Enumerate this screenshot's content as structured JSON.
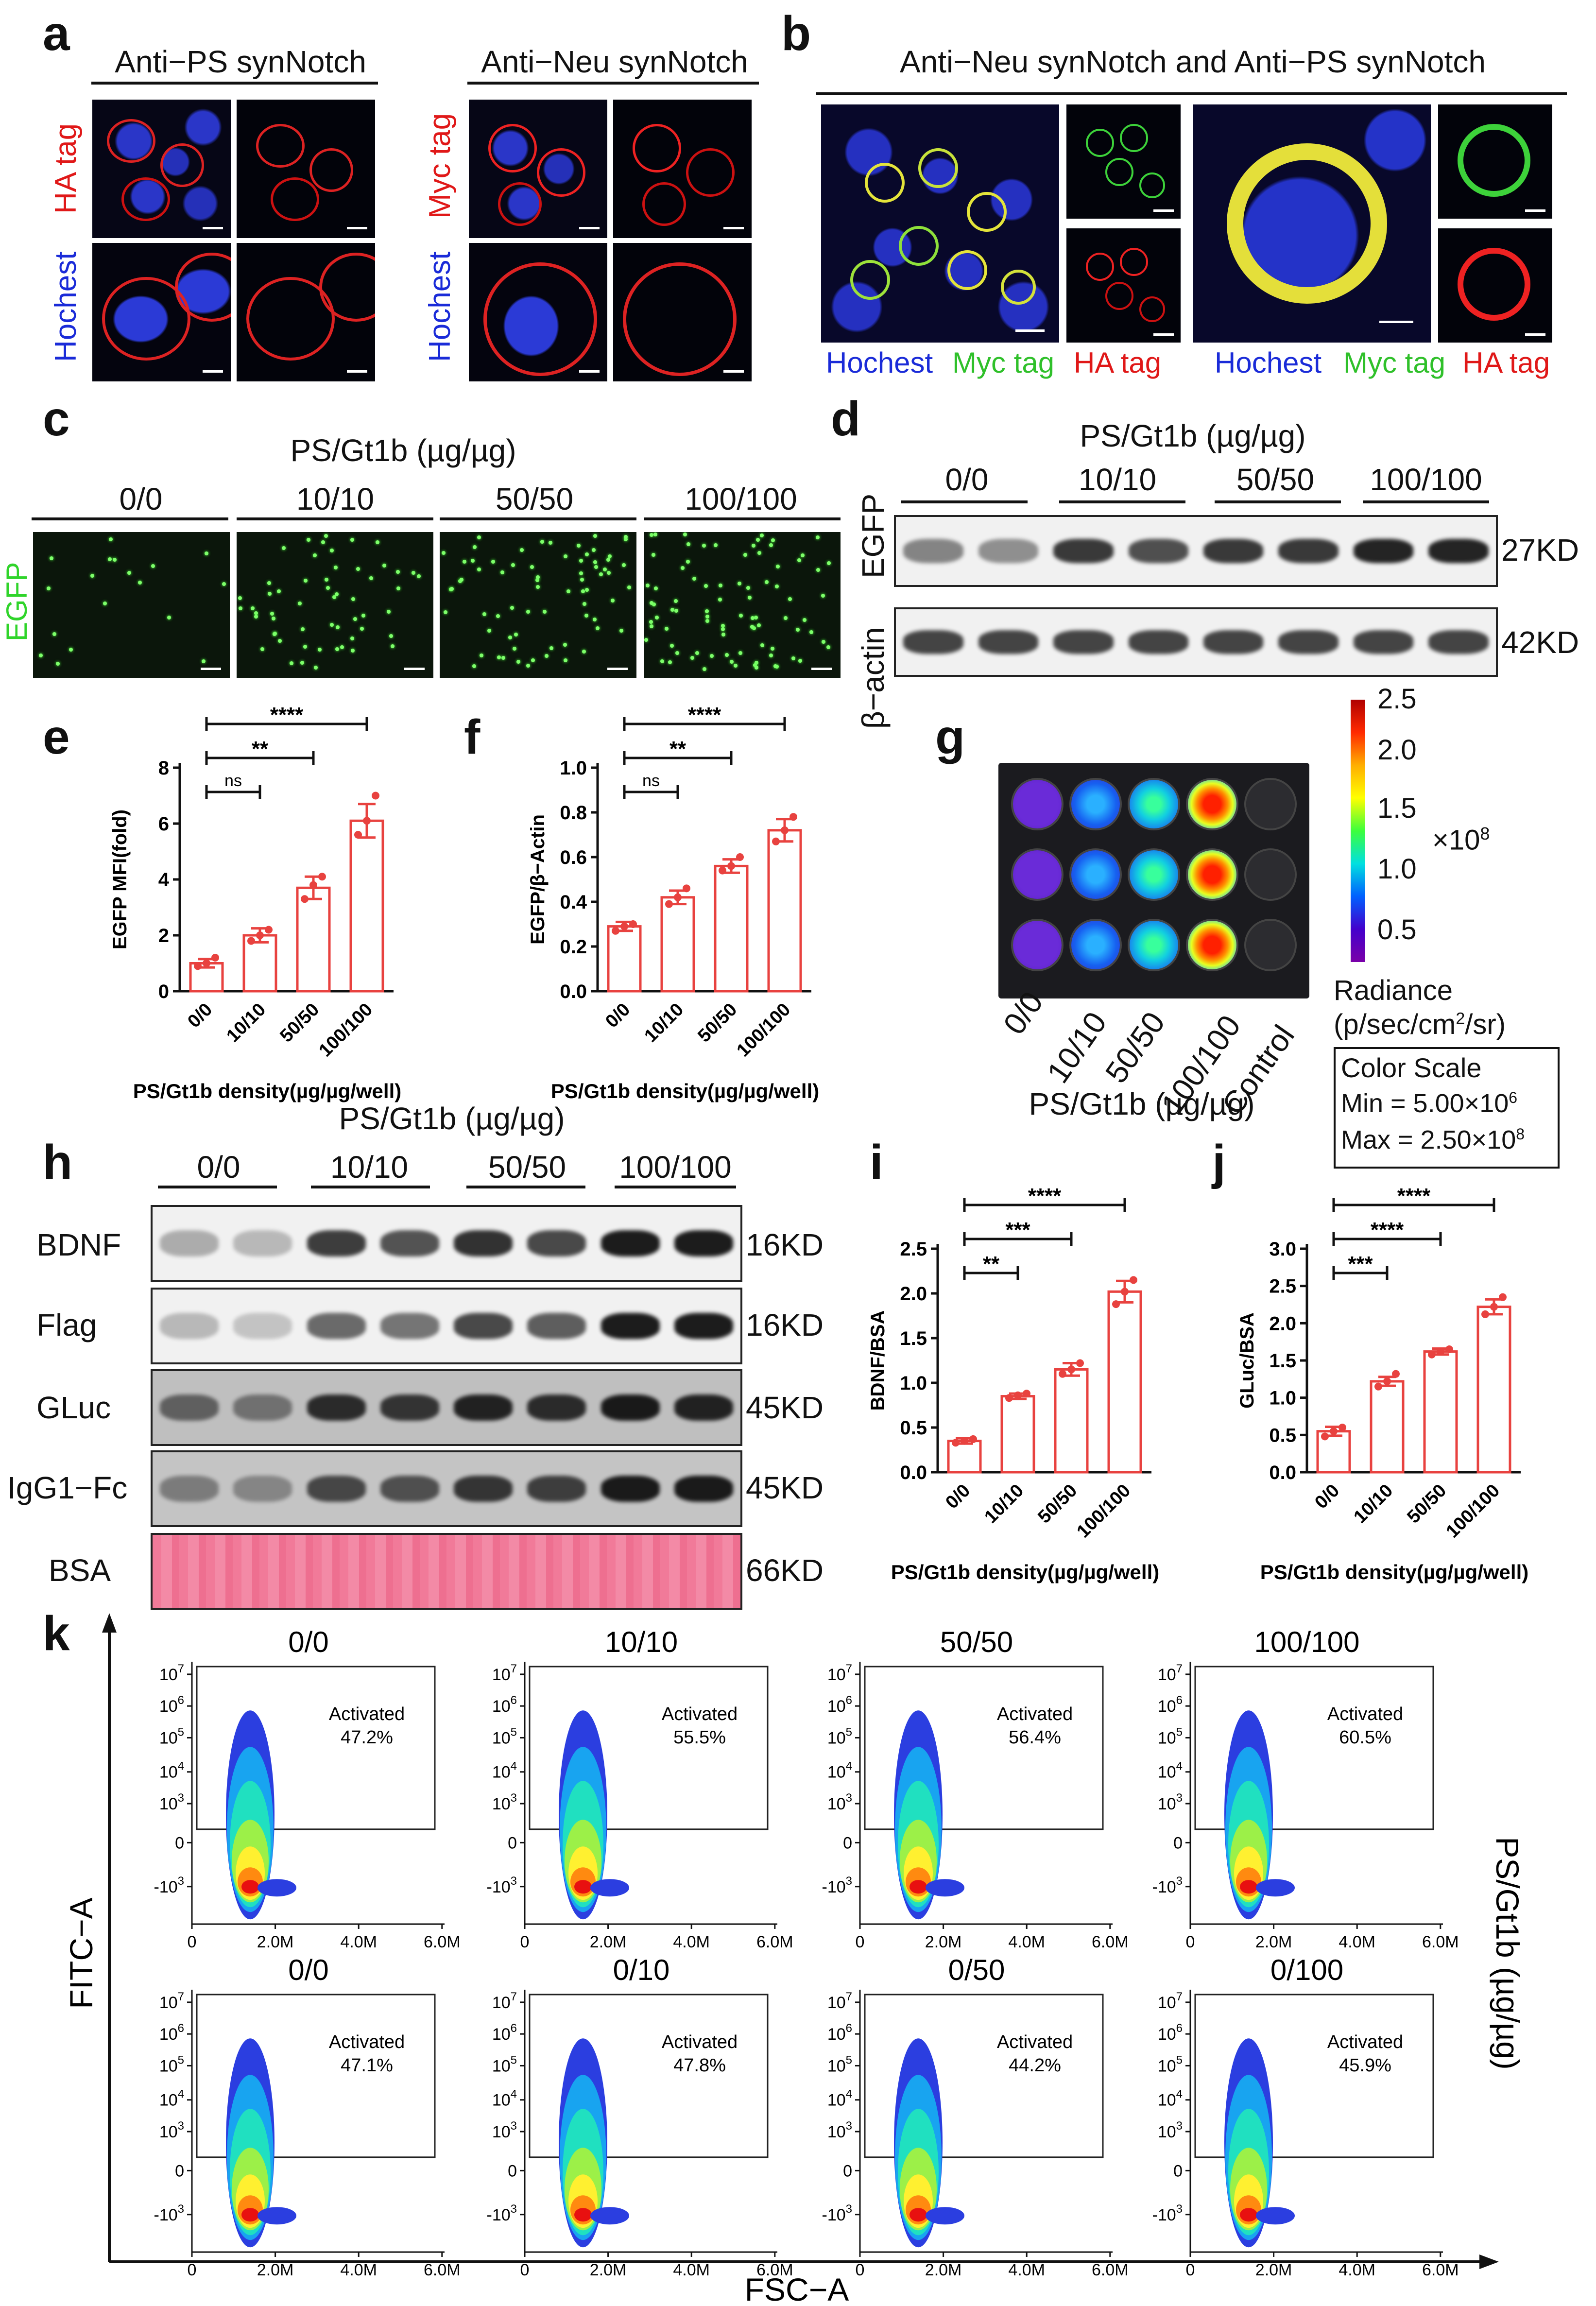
{
  "figure": {
    "panel_labels": [
      "a",
      "b",
      "c",
      "d",
      "e",
      "f",
      "g",
      "h",
      "i",
      "j",
      "k"
    ],
    "panel_a": {
      "col1_title": "Anti−PS synNotch",
      "col2_title": "Anti−Neu synNotch",
      "row_tag_left": "HA tag",
      "row_tag_right": "Myc tag",
      "row_lower": "Hochest"
    },
    "panel_b": {
      "title": "Anti−Neu synNotch and Anti−PS synNotch",
      "legend_hochest": "Hochest",
      "legend_myc": "Myc tag",
      "legend_ha": "HA tag"
    },
    "panel_c": {
      "title": "PS/Gt1b (µg/µg)",
      "groups": [
        "0/0",
        "10/10",
        "50/50",
        "100/100"
      ],
      "channel": "EGFP"
    },
    "panel_d": {
      "title": "PS/Gt1b (µg/µg)",
      "groups": [
        "0/0",
        "10/10",
        "50/50",
        "100/100"
      ],
      "rows": [
        {
          "label": "EGFP",
          "size": "27KD"
        },
        {
          "label": "β−actin",
          "size": "42KD"
        }
      ]
    },
    "panel_g": {
      "xlabels": [
        "0/0",
        "10/10",
        "50/50",
        "100/100",
        "Control"
      ],
      "xtitle": "PS/Gt1b (µg/µg)",
      "colorbar_ticks": [
        "2.5",
        "2.0",
        "1.5",
        "1.0",
        "0.5"
      ],
      "multiplier": "×10",
      "multiplier_exp": "8",
      "radiance_label": "Radiance",
      "radiance_unit_pre": "(p/sec/cm",
      "radiance_unit_exp": "2",
      "radiance_unit_post": "/sr)",
      "scale_title": "Color Scale",
      "scale_min_pre": "Min = 5.00×10",
      "scale_min_exp": "6",
      "scale_max_pre": "Max = 2.50×10",
      "scale_max_exp": "8"
    },
    "panel_h": {
      "title": "PS/Gt1b (µg/µg)",
      "groups": [
        "0/0",
        "10/10",
        "50/50",
        "100/100"
      ],
      "rows": [
        {
          "label": "BDNF",
          "size": "16KD"
        },
        {
          "label": "Flag",
          "size": "16KD"
        },
        {
          "label": "GLuc",
          "size": "45KD"
        },
        {
          "label": "IgG1−Fc",
          "size": "45KD"
        },
        {
          "label": "BSA",
          "size": "66KD"
        }
      ]
    },
    "panel_k": {
      "top_titles": [
        "0/0",
        "10/10",
        "50/50",
        "100/100"
      ],
      "bottom_titles": [
        "0/0",
        "0/10",
        "0/50",
        "0/100"
      ],
      "gate_label": "Activated",
      "top_values": [
        "47.2%",
        "55.5%",
        "56.4%",
        "60.5%"
      ],
      "bottom_values": [
        "47.1%",
        "47.8%",
        "44.2%",
        "45.9%"
      ],
      "x_ticks": [
        "0",
        "2.0M",
        "4.0M",
        "6.0M"
      ],
      "y_tick_bases": [
        "10",
        "10",
        "10",
        "10",
        "10",
        "0",
        "-10"
      ],
      "y_tick_exps": [
        "7",
        "6",
        "5",
        "4",
        "3",
        "",
        "3"
      ],
      "xaxis": "FSC−A",
      "yaxis": "FITC−A",
      "right_label": "PS/Gt1b (µg/µg)"
    }
  },
  "chart_data": [
    {
      "panel": "e",
      "type": "bar",
      "categories": [
        "0/0",
        "10/10",
        "50/50",
        "100/100"
      ],
      "values": [
        1.0,
        2.0,
        3.7,
        6.1
      ],
      "errors": [
        0.15,
        0.25,
        0.4,
        0.6
      ],
      "points": [
        [
          0.9,
          1.0,
          1.2
        ],
        [
          1.8,
          2.0,
          2.2
        ],
        [
          3.3,
          3.8,
          4.1
        ],
        [
          5.6,
          6.1,
          7.0
        ]
      ],
      "ylabel": "EGFP MFI(fold)",
      "xlabel": "PS/Gt1b density(µg/µg/well)",
      "ylim": [
        0,
        8
      ],
      "yticks": [
        0,
        2,
        4,
        6,
        8
      ],
      "sig": [
        {
          "from": 0,
          "to": 1,
          "label": "ns"
        },
        {
          "from": 0,
          "to": 2,
          "label": "**"
        },
        {
          "from": 0,
          "to": 3,
          "label": "****"
        }
      ]
    },
    {
      "panel": "f",
      "type": "bar",
      "categories": [
        "0/0",
        "10/10",
        "50/50",
        "100/100"
      ],
      "values": [
        0.29,
        0.42,
        0.56,
        0.72
      ],
      "errors": [
        0.02,
        0.03,
        0.03,
        0.05
      ],
      "points": [
        [
          0.27,
          0.29,
          0.3
        ],
        [
          0.39,
          0.42,
          0.46
        ],
        [
          0.54,
          0.56,
          0.6
        ],
        [
          0.67,
          0.72,
          0.78
        ]
      ],
      "ylabel": "EGFP/β−Actin",
      "xlabel": "PS/Gt1b density(µg/µg/well)",
      "ylim": [
        0,
        1.0
      ],
      "yticks": [
        0.0,
        0.2,
        0.4,
        0.6,
        0.8,
        1.0
      ],
      "sig": [
        {
          "from": 0,
          "to": 1,
          "label": "ns"
        },
        {
          "from": 0,
          "to": 2,
          "label": "**"
        },
        {
          "from": 0,
          "to": 3,
          "label": "****"
        }
      ]
    },
    {
      "panel": "i",
      "type": "bar",
      "categories": [
        "0/0",
        "10/10",
        "50/50",
        "100/100"
      ],
      "values": [
        0.35,
        0.85,
        1.15,
        2.02
      ],
      "errors": [
        0.03,
        0.03,
        0.07,
        0.12
      ],
      "points": [
        [
          0.33,
          0.35,
          0.37
        ],
        [
          0.83,
          0.86,
          0.88
        ],
        [
          1.1,
          1.15,
          1.22
        ],
        [
          1.88,
          2.02,
          2.15
        ]
      ],
      "ylabel": "BDNF/BSA",
      "xlabel": "PS/Gt1b density(µg/µg/well)",
      "ylim": [
        0,
        2.5
      ],
      "yticks": [
        0.0,
        0.5,
        1.0,
        1.5,
        2.0,
        2.5
      ],
      "sig": [
        {
          "from": 0,
          "to": 1,
          "label": "**"
        },
        {
          "from": 0,
          "to": 2,
          "label": "***"
        },
        {
          "from": 0,
          "to": 3,
          "label": "****"
        }
      ]
    },
    {
      "panel": "j",
      "type": "bar",
      "categories": [
        "0/0",
        "10/10",
        "50/50",
        "100/100"
      ],
      "values": [
        0.55,
        1.22,
        1.62,
        2.22
      ],
      "errors": [
        0.06,
        0.06,
        0.04,
        0.1
      ],
      "points": [
        [
          0.48,
          0.55,
          0.6
        ],
        [
          1.15,
          1.22,
          1.32
        ],
        [
          1.58,
          1.62,
          1.65
        ],
        [
          2.12,
          2.22,
          2.35
        ]
      ],
      "ylabel": "GLuc/BSA",
      "xlabel": "PS/Gt1b density(µg/µg/well)",
      "ylim": [
        0,
        3.0
      ],
      "yticks": [
        0.0,
        0.5,
        1.0,
        1.5,
        2.0,
        2.5,
        3.0
      ],
      "sig": [
        {
          "from": 0,
          "to": 1,
          "label": "***"
        },
        {
          "from": 0,
          "to": 2,
          "label": "****"
        },
        {
          "from": 0,
          "to": 3,
          "label": "****"
        }
      ]
    }
  ]
}
